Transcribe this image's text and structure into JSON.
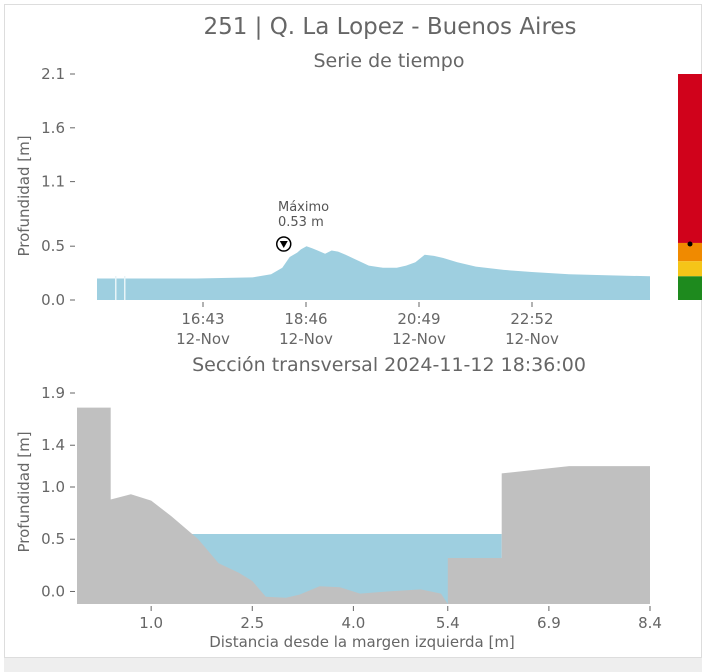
{
  "title": "251 | Q. La Lopez - Buenos Aires",
  "chart_data": [
    {
      "type": "area",
      "title": "Serie de tiempo",
      "ylabel": "Profundidad [m]",
      "xlabel": "",
      "ylim": [
        0,
        2.1
      ],
      "yticks": [
        "0.0",
        "0.5",
        "1.1",
        "1.6",
        "2.1"
      ],
      "xticks": [
        {
          "time": "16:43",
          "date": "12-Nov"
        },
        {
          "time": "18:46",
          "date": "12-Nov"
        },
        {
          "time": "20:49",
          "date": "12-Nov"
        },
        {
          "time": "22:52",
          "date": "12-Nov"
        }
      ],
      "xrange_minutes": [
        893,
        1487
      ],
      "series": [
        {
          "x_minutes": [
            893,
            940,
            1000,
            1060,
            1080,
            1092,
            1100,
            1108,
            1112,
            1118,
            1124,
            1130,
            1138,
            1145,
            1152,
            1160,
            1170,
            1185,
            1200,
            1215,
            1225,
            1235,
            1245,
            1255,
            1265,
            1280,
            1300,
            1330,
            1360,
            1400,
            1440,
            1487
          ],
          "values": [
            0.2,
            0.2,
            0.2,
            0.21,
            0.24,
            0.3,
            0.4,
            0.44,
            0.47,
            0.5,
            0.48,
            0.46,
            0.43,
            0.46,
            0.45,
            0.42,
            0.38,
            0.32,
            0.3,
            0.3,
            0.32,
            0.35,
            0.42,
            0.41,
            0.39,
            0.35,
            0.31,
            0.28,
            0.26,
            0.24,
            0.23,
            0.22
          ],
          "color": "#9ecfe0"
        }
      ],
      "annotation": {
        "label": "Máximo",
        "value": "0.53 m",
        "x_minutes": 1114,
        "y": 0.52
      }
    },
    {
      "type": "area",
      "title": "Sección transversal 2024-11-12 18:36:00",
      "xlabel": "Distancia desde la margen izquierda [m]",
      "ylabel": "Profundidad [m]",
      "xlim": [
        -0.1,
        8.4
      ],
      "ylim": [
        -0.12,
        1.9
      ],
      "xticks": [
        "1.0",
        "2.5",
        "4.0",
        "5.4",
        "6.9",
        "8.4"
      ],
      "xtick_values": [
        1.0,
        2.5,
        4.0,
        5.4,
        6.9,
        8.4
      ],
      "yticks": [
        "0.0",
        "0.5",
        "1.0",
        "1.4",
        "1.9"
      ],
      "ytick_values": [
        0.0,
        0.5,
        1.0,
        1.4,
        1.9
      ],
      "water_level": 0.55,
      "water_color": "#9ecfe0",
      "ground_color": "#c0c0c0",
      "ground": {
        "x": [
          -0.1,
          0.4,
          0.4,
          0.7,
          1.0,
          1.3,
          1.7,
          2.0,
          2.3,
          2.5,
          2.7,
          3.0,
          3.2,
          3.5,
          3.8,
          4.1,
          4.5,
          5.0,
          5.3,
          5.4,
          5.4,
          6.2,
          6.2,
          7.2,
          8.4
        ],
        "y": [
          1.76,
          1.76,
          0.88,
          0.93,
          0.87,
          0.72,
          0.5,
          0.27,
          0.18,
          0.1,
          -0.05,
          -0.06,
          -0.03,
          0.05,
          0.04,
          -0.02,
          0.0,
          0.02,
          -0.02,
          -0.12,
          0.32,
          0.32,
          1.13,
          1.2,
          1.2
        ]
      }
    }
  ],
  "gauge": {
    "levels": [
      {
        "color": "#d0021b",
        "from": 0.53,
        "to": 2.1
      },
      {
        "color": "#f08a00",
        "from": 0.36,
        "to": 0.53
      },
      {
        "color": "#f5c518",
        "from": 0.22,
        "to": 0.36
      },
      {
        "color": "#1e8a1e",
        "from": 0.0,
        "to": 0.22
      }
    ],
    "current_value": 0.53
  }
}
